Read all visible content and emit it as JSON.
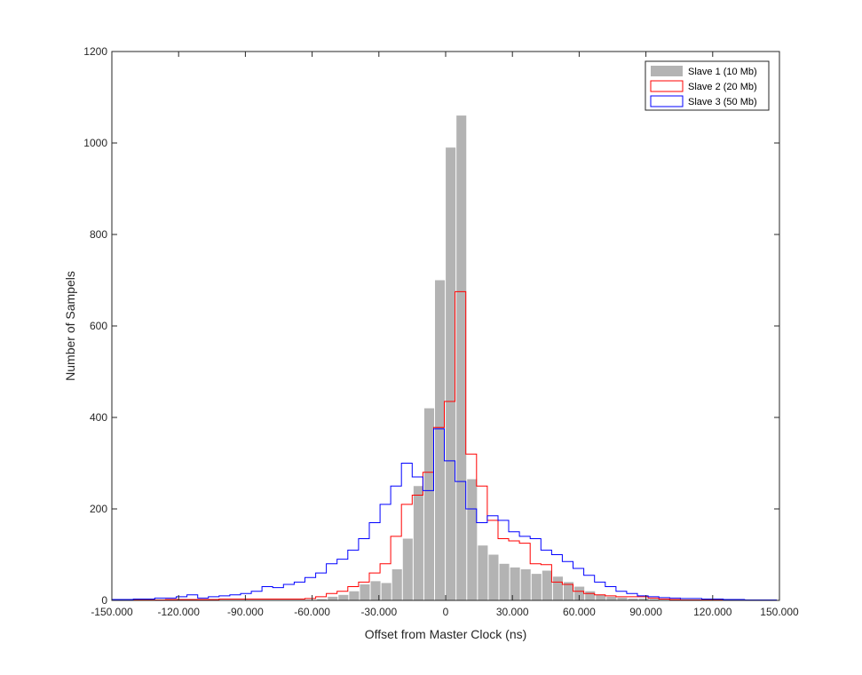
{
  "chart_data": {
    "type": "bar",
    "xlabel": "Offset from Master Clock (ns)",
    "ylabel": "Number of Sampels",
    "xlim": [
      -150,
      150
    ],
    "ylim": [
      0,
      1200
    ],
    "xticks": [
      -150,
      -120,
      -90,
      -60,
      -30,
      0,
      30,
      60,
      90,
      120,
      150
    ],
    "xtick_labels": [
      "-150.000",
      "-120.000",
      "-90.000",
      "-60.000",
      "-30.000",
      "0",
      "30.000",
      "60.000",
      "90.000",
      "120.000",
      "150.000"
    ],
    "yticks": [
      0,
      200,
      400,
      600,
      800,
      1000,
      1200
    ],
    "ytick_labels": [
      "0",
      "200",
      "400",
      "600",
      "800",
      "1000",
      "1200"
    ],
    "grid": false,
    "legend_position": "top-right",
    "bin_width": 4.82,
    "bin_edges_x": [
      -150,
      -145.18,
      -140.36,
      -135.54,
      -130.72,
      -125.9,
      -121.08,
      -116.26,
      -111.44,
      -106.62,
      -101.8,
      -96.98,
      -92.16,
      -87.34,
      -82.52,
      -77.7,
      -72.88,
      -68.06,
      -63.24,
      -58.42,
      -53.6,
      -48.78,
      -43.96,
      -39.14,
      -34.32,
      -29.5,
      -24.68,
      -19.86,
      -15.04,
      -10.22,
      -5.4,
      -0.58,
      4.24,
      9.06,
      13.88,
      18.7,
      23.52,
      28.34,
      33.16,
      37.98,
      42.8,
      47.62,
      52.44,
      57.26,
      62.08,
      66.9,
      71.72,
      76.54,
      81.36,
      86.18,
      91.0,
      95.82,
      100.64,
      105.46,
      110.28,
      115.1,
      119.92,
      124.74,
      129.56,
      134.38,
      139.2,
      144.02,
      148.84
    ],
    "series": [
      {
        "name": "Slave 1 (10 Mb)",
        "style": "filled-bars",
        "color": "#b3b3b3",
        "bin_centers": [
          -55.59,
          -50.77,
          -45.95,
          -41.13,
          -36.31,
          -31.49,
          -26.67,
          -21.85,
          -17.03,
          -12.21,
          -7.39,
          -2.57,
          2.25,
          7.07,
          11.89,
          16.71,
          21.53,
          26.35,
          31.17,
          35.99,
          40.81,
          45.63,
          50.45,
          55.27,
          60.09,
          64.91,
          69.73,
          74.55,
          79.37,
          84.19,
          89.01,
          93.83
        ],
        "values": [
          3,
          8,
          12,
          20,
          35,
          42,
          38,
          68,
          135,
          250,
          420,
          700,
          990,
          1060,
          265,
          120,
          100,
          80,
          72,
          68,
          58,
          65,
          52,
          40,
          30,
          20,
          12,
          8,
          6,
          4,
          4,
          3
        ]
      },
      {
        "name": "Slave 2 (20 Mb)",
        "style": "step",
        "color": "#ff0000",
        "values": [
          0,
          0,
          0,
          0,
          0,
          0,
          0,
          0,
          0,
          0,
          0,
          0,
          0,
          0,
          0,
          2,
          3,
          3,
          4,
          5,
          5,
          8,
          12,
          18,
          28,
          30,
          38,
          50,
          82,
          130,
          210,
          232,
          280,
          377,
          435,
          675,
          320,
          250,
          175,
          135,
          132,
          125,
          80,
          80,
          40,
          35,
          20,
          18,
          12,
          12,
          10,
          8,
          8,
          8,
          8,
          3,
          2,
          0,
          0,
          0,
          0,
          0
        ],
        "step_values_estimated": [
          1,
          1,
          1,
          1,
          1,
          2,
          2,
          2,
          2,
          2,
          3,
          3,
          3,
          3,
          3,
          3,
          3,
          3,
          4,
          8,
          15,
          20,
          30,
          40,
          60,
          80,
          140,
          210,
          230,
          280,
          378,
          435,
          675,
          320,
          250,
          175,
          135,
          130,
          125,
          80,
          78,
          40,
          35,
          20,
          15,
          12,
          10,
          8,
          8,
          8,
          5,
          3,
          2,
          1,
          1,
          1,
          1,
          1,
          1,
          1,
          1,
          1
        ]
      },
      {
        "name": "Slave 3 (50 Mb)",
        "style": "step",
        "color": "#0000ff",
        "step_values_estimated": [
          2,
          2,
          3,
          3,
          5,
          5,
          8,
          12,
          5,
          8,
          10,
          12,
          15,
          20,
          30,
          28,
          35,
          40,
          50,
          60,
          80,
          90,
          110,
          135,
          170,
          210,
          250,
          300,
          270,
          240,
          375,
          305,
          260,
          200,
          170,
          185,
          175,
          150,
          140,
          135,
          110,
          100,
          85,
          70,
          55,
          40,
          30,
          20,
          15,
          10,
          8,
          6,
          5,
          4,
          4,
          3,
          3,
          2,
          2,
          1,
          1,
          1
        ]
      }
    ]
  }
}
